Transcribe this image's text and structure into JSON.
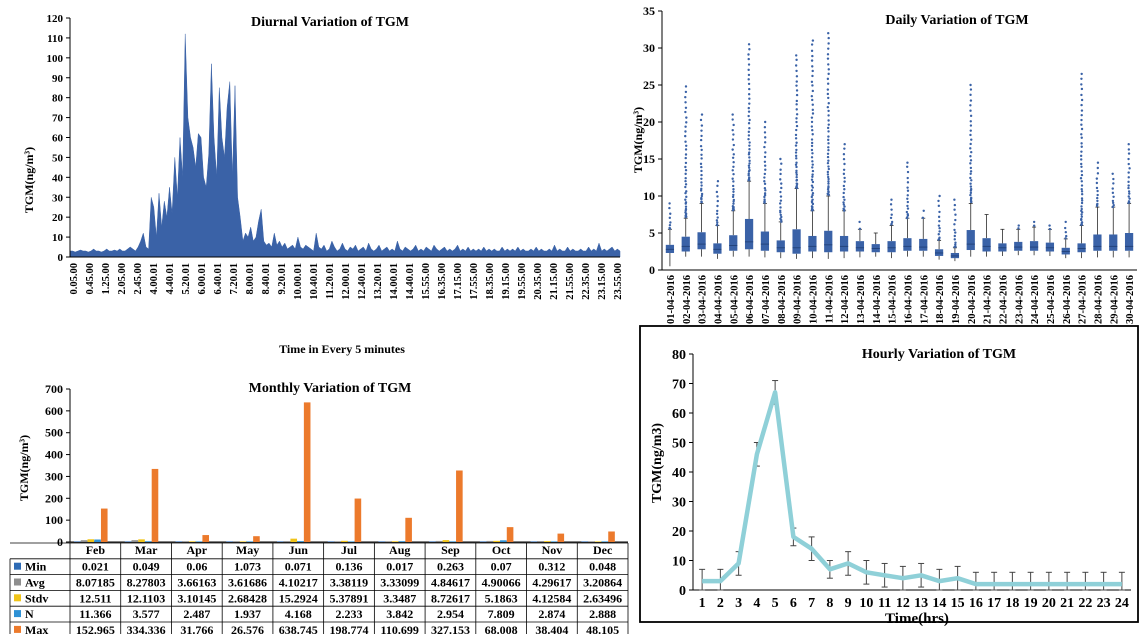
{
  "chart_data": [
    {
      "id": "diurnal",
      "type": "area",
      "title": "Diurnal  Variation of TGM",
      "xlabel": "Time in Every 5 minutes",
      "ylabel": "TGM(ng/m³)",
      "ylim": [
        0,
        120
      ],
      "yticks": [
        0,
        10,
        20,
        30,
        40,
        50,
        60,
        70,
        80,
        90,
        100,
        110,
        120
      ],
      "x_tick_labels": [
        "0.05.00",
        "0.45.00",
        "1.25.00",
        "2.05.00",
        "2.45.00",
        "4.00.01",
        "4.40.01",
        "5.20.01",
        "6.00.01",
        "6.40.01",
        "7.20.01",
        "8.00.01",
        "8.40.01",
        "9.20.01",
        "10.00.01",
        "10.40.01",
        "11.20.01",
        "12.00.01",
        "12.40.01",
        "13.20.01",
        "14.00.01",
        "14.40.01",
        "15.55.00",
        "16.35.00",
        "17.15.00",
        "17.55.00",
        "18.35.00",
        "19.15.00",
        "19.55.00",
        "20.35.00",
        "21.15.00",
        "21.55.00",
        "22.35.00",
        "23.15.00",
        "23.55.00"
      ],
      "color": "#3a62a7",
      "values": [
        3,
        3,
        2.5,
        3,
        3.5,
        3,
        3,
        2.5,
        3,
        4,
        3,
        3,
        2.5,
        3,
        4,
        3,
        3,
        3.5,
        3,
        4,
        3,
        3,
        4,
        5,
        4,
        3,
        5,
        8,
        12,
        5,
        4,
        30,
        25,
        10,
        32,
        15,
        28,
        20,
        35,
        22,
        50,
        30,
        60,
        40,
        112,
        70,
        60,
        55,
        45,
        62,
        60,
        40,
        35,
        52,
        97,
        60,
        40,
        85,
        60,
        50,
        75,
        88,
        40,
        86,
        30,
        20,
        8,
        12,
        10,
        15,
        8,
        10,
        18,
        24,
        8,
        6,
        7,
        5,
        12,
        6,
        8,
        5,
        7,
        4,
        5,
        6,
        4,
        10,
        5,
        4,
        6,
        5,
        4,
        3,
        12,
        5,
        4,
        6,
        3,
        4,
        8,
        5,
        3,
        4,
        7,
        4,
        3,
        5,
        4,
        6,
        3,
        4,
        5,
        3,
        7,
        4,
        3,
        4,
        6,
        3,
        4,
        5,
        3,
        4,
        3,
        8,
        4,
        3,
        5,
        4,
        3,
        4,
        6,
        3,
        4,
        3,
        5,
        4,
        3,
        6,
        4,
        3,
        4,
        5,
        3,
        4,
        3,
        4,
        6,
        3,
        4,
        3,
        5,
        3,
        4,
        3,
        4,
        3,
        5,
        3,
        4,
        3,
        4,
        3,
        3,
        5,
        3,
        4,
        3,
        4,
        3,
        5,
        3,
        4,
        3,
        3,
        4,
        3,
        5,
        3,
        4,
        3,
        3,
        4,
        3,
        6,
        3,
        4,
        3,
        3,
        5,
        3,
        4,
        3,
        3,
        4,
        3,
        3,
        5,
        3,
        4,
        3,
        7,
        3,
        4,
        3,
        4,
        5,
        3,
        4,
        3
      ]
    },
    {
      "id": "daily",
      "type": "box",
      "title": "Daily  Variation of TGM",
      "xlabel": "",
      "ylabel": "TGM(ng/m³)",
      "ylim": [
        0,
        35
      ],
      "yticks": [
        0,
        5,
        10,
        15,
        20,
        25,
        30,
        35
      ],
      "color": "#3a62a7",
      "categories": [
        "01-04-2016",
        "02-04-2016",
        "03-04-2016",
        "04-04-2016",
        "05-04-2016",
        "06-04-2016",
        "07-04-2016",
        "08-04-2016",
        "09-04-2016",
        "10-04-2016",
        "11-04-2016",
        "12-04-2016",
        "13-04-2016",
        "14-04-2016",
        "15-04-2016",
        "16-04-2016",
        "17-04-2016",
        "18-04-2016",
        "19-04-2016",
        "20-04-2016",
        "21-04-2016",
        "22-04-2016",
        "23-04-2016",
        "24-04-2016",
        "25-04-2016",
        "26-04-2016",
        "27-04-2016",
        "28-04-2016",
        "29-04-2016",
        "30-04-2016"
      ],
      "boxes": [
        {
          "min": 0.5,
          "q1": 2.3,
          "median": 2.8,
          "q3": 3.4,
          "max": 5.5,
          "outliers_max": 9
        },
        {
          "min": 1.8,
          "q1": 2.5,
          "median": 3.2,
          "q3": 4.5,
          "max": 7,
          "outliers_max": 24.8
        },
        {
          "min": 1.8,
          "q1": 2.8,
          "median": 3.5,
          "q3": 5.1,
          "max": 9,
          "outliers_max": 21
        },
        {
          "min": 1.5,
          "q1": 2.2,
          "median": 2.8,
          "q3": 3.6,
          "max": 6,
          "outliers_max": 12
        },
        {
          "min": 1.8,
          "q1": 2.6,
          "median": 3.3,
          "q3": 4.7,
          "max": 8,
          "outliers_max": 21
        },
        {
          "min": 1.8,
          "q1": 2.8,
          "median": 3.8,
          "q3": 6.9,
          "max": 12,
          "outliers_max": 30.5
        },
        {
          "min": 1.7,
          "q1": 2.6,
          "median": 3.5,
          "q3": 5.2,
          "max": 9,
          "outliers_max": 20
        },
        {
          "min": 1.6,
          "q1": 2.4,
          "median": 3,
          "q3": 4,
          "max": 6.5,
          "outliers_max": 15
        },
        {
          "min": 1.5,
          "q1": 2.2,
          "median": 3,
          "q3": 5.5,
          "max": 11,
          "outliers_max": 29
        },
        {
          "min": 1.6,
          "q1": 2.5,
          "median": 3.2,
          "q3": 4.6,
          "max": 8,
          "outliers_max": 31
        },
        {
          "min": 1.5,
          "q1": 2.4,
          "median": 3.4,
          "q3": 5.3,
          "max": 10,
          "outliers_max": 32
        },
        {
          "min": 1.6,
          "q1": 2.5,
          "median": 3.2,
          "q3": 4.6,
          "max": 8,
          "outliers_max": 17
        },
        {
          "min": 1.7,
          "q1": 2.5,
          "median": 3,
          "q3": 3.9,
          "max": 5.5,
          "outliers_max": 6.5
        },
        {
          "min": 1.8,
          "q1": 2.4,
          "median": 2.9,
          "q3": 3.5,
          "max": 5,
          "outliers_max": 5
        },
        {
          "min": 1.6,
          "q1": 2.4,
          "median": 3,
          "q3": 3.9,
          "max": 6,
          "outliers_max": 9.5
        },
        {
          "min": 1.8,
          "q1": 2.6,
          "median": 3.2,
          "q3": 4.3,
          "max": 7,
          "outliers_max": 14.5
        },
        {
          "min": 1.8,
          "q1": 2.6,
          "median": 3.1,
          "q3": 4.2,
          "max": 7,
          "outliers_max": 8
        },
        {
          "min": 1.4,
          "q1": 1.9,
          "median": 2.3,
          "q3": 2.8,
          "max": 4,
          "outliers_max": 10
        },
        {
          "min": 1.2,
          "q1": 1.6,
          "median": 1.9,
          "q3": 2.3,
          "max": 3,
          "outliers_max": 9.5
        },
        {
          "min": 1.8,
          "q1": 2.7,
          "median": 3.5,
          "q3": 5.4,
          "max": 9,
          "outliers_max": 25
        },
        {
          "min": 1.8,
          "q1": 2.5,
          "median": 3.2,
          "q3": 4.3,
          "max": 7.5,
          "outliers_max": 7.5
        },
        {
          "min": 1.9,
          "q1": 2.5,
          "median": 3,
          "q3": 3.6,
          "max": 5.5,
          "outliers_max": 5.5
        },
        {
          "min": 2,
          "q1": 2.6,
          "median": 3.1,
          "q3": 3.8,
          "max": 5.5,
          "outliers_max": 6
        },
        {
          "min": 2,
          "q1": 2.6,
          "median": 3.1,
          "q3": 3.9,
          "max": 5.8,
          "outliers_max": 6.5
        },
        {
          "min": 1.9,
          "q1": 2.5,
          "median": 3,
          "q3": 3.7,
          "max": 5.5,
          "outliers_max": 6
        },
        {
          "min": 1.6,
          "q1": 2.1,
          "median": 2.5,
          "q3": 3,
          "max": 4.2,
          "outliers_max": 6.5
        },
        {
          "min": 1.6,
          "q1": 2.4,
          "median": 2.9,
          "q3": 3.6,
          "max": 6,
          "outliers_max": 26.5
        },
        {
          "min": 1.7,
          "q1": 2.6,
          "median": 3.2,
          "q3": 4.8,
          "max": 8.5,
          "outliers_max": 14.5
        },
        {
          "min": 1.7,
          "q1": 2.6,
          "median": 3.2,
          "q3": 4.8,
          "max": 8.5,
          "outliers_max": 13
        },
        {
          "min": 1.7,
          "q1": 2.6,
          "median": 3.2,
          "q3": 5,
          "max": 9,
          "outliers_max": 17
        }
      ]
    },
    {
      "id": "monthly",
      "type": "bar",
      "title": "Monthly Variation of TGM",
      "xlabel": "",
      "ylabel": "TGM(ng/m³)",
      "ylim": [
        0,
        700
      ],
      "yticks": [
        0,
        100,
        200,
        300,
        400,
        500,
        600,
        700
      ],
      "categories": [
        "Feb",
        "Mar",
        "Apr",
        "May",
        "Jun",
        "Jul",
        "Aug",
        "Sep",
        "Oct",
        "Nov",
        "Dec"
      ],
      "series": [
        {
          "name": "Min",
          "color": "#2e6bb5",
          "values": [
            0.021,
            0.049,
            0.06,
            1.073,
            0.071,
            0.136,
            0.017,
            0.263,
            0.07,
            0.312,
            0.048
          ],
          "labels": [
            "0.021",
            "0.049",
            "0.06",
            "1.073",
            "0.071",
            "0.136",
            "0.017",
            "0.263",
            "0.07",
            "0.312",
            "0.048"
          ]
        },
        {
          "name": "Avg",
          "color": "#8e8e8e",
          "values": [
            8.07185,
            8.27803,
            3.66163,
            3.61686,
            4.10217,
            3.38119,
            3.33099,
            4.84617,
            4.90066,
            4.29617,
            3.20864
          ],
          "labels": [
            "8.07185",
            "8.27803",
            "3.66163",
            "3.61686",
            "4.10217",
            "3.38119",
            "3.33099",
            "4.84617",
            "4.90066",
            "4.29617",
            "3.20864"
          ]
        },
        {
          "name": "Stdv",
          "color": "#f0c419",
          "values": [
            12.511,
            12.1103,
            3.10145,
            2.68428,
            15.2924,
            5.37891,
            3.3487,
            8.72617,
            5.1863,
            4.12584,
            2.63496
          ],
          "labels": [
            "12.511",
            "12.1103",
            "3.10145",
            "2.68428",
            "15.2924",
            "5.37891",
            "3.3487",
            "8.72617",
            "5.1863",
            "4.12584",
            "2.63496"
          ]
        },
        {
          "name": "N",
          "color": "#2f92d6",
          "values": [
            11.366,
            3.577,
            2.487,
            1.937,
            4.168,
            2.233,
            3.842,
            2.954,
            7.809,
            2.874,
            2.888
          ],
          "labels": [
            "11.366",
            "3.577",
            "2.487",
            "1.937",
            "4.168",
            "2.233",
            "3.842",
            "2.954",
            "7.809",
            "2.874",
            "2.888"
          ]
        },
        {
          "name": "Max",
          "color": "#ec7a2c",
          "values": [
            152.965,
            334.336,
            31.766,
            26.576,
            638.745,
            198.774,
            110.699,
            327.153,
            68.008,
            38.404,
            48.105
          ],
          "labels": [
            "152.965",
            "334.336",
            "31.766",
            "26.576",
            "638.745",
            "198.774",
            "110.699",
            "327.153",
            "68.008",
            "38.404",
            "48.105"
          ]
        }
      ]
    },
    {
      "id": "hourly",
      "type": "line",
      "title": "Hourly  Variation of TGM",
      "xlabel": "Time(hrs)",
      "ylabel": "TGM(ng/m3)",
      "ylim": [
        0,
        80
      ],
      "yticks": [
        0,
        10,
        20,
        30,
        40,
        50,
        60,
        70,
        80
      ],
      "x": [
        1,
        2,
        3,
        4,
        5,
        6,
        7,
        8,
        9,
        10,
        11,
        12,
        13,
        14,
        15,
        16,
        17,
        18,
        19,
        20,
        21,
        22,
        23,
        24
      ],
      "values": [
        3,
        3,
        9,
        46,
        67,
        18,
        14,
        7,
        9,
        6,
        5,
        4,
        5,
        3,
        4,
        2,
        2,
        2,
        2,
        2,
        2,
        2,
        2,
        2
      ],
      "errors": [
        4,
        4,
        4,
        4,
        4,
        3,
        4,
        3,
        4,
        4,
        4,
        4,
        4,
        4,
        4,
        4,
        4,
        4,
        4,
        4,
        4,
        4,
        4,
        4
      ],
      "color": "#8fd0d8"
    }
  ]
}
